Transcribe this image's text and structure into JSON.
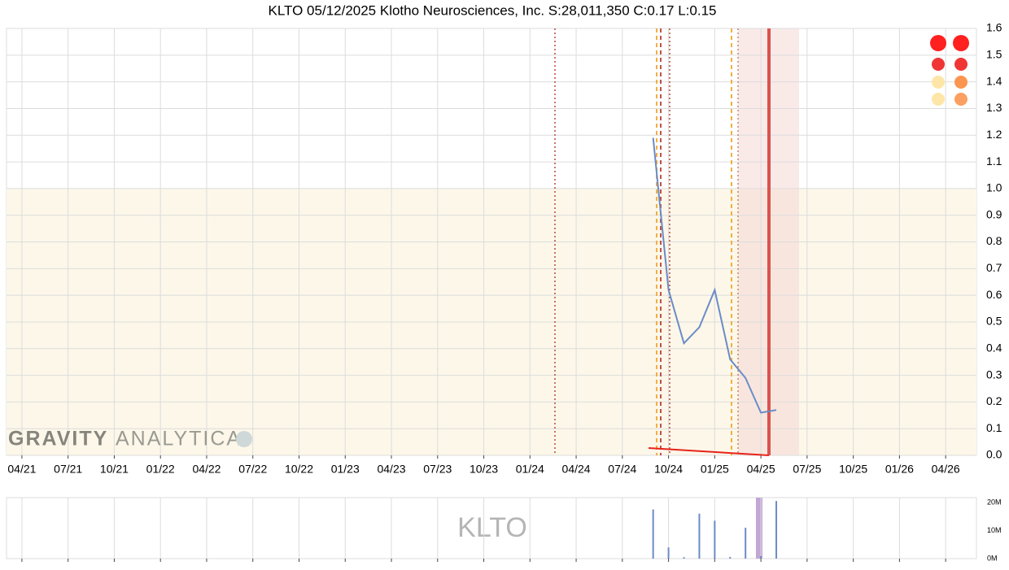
{
  "chart_data": [
    {
      "type": "line",
      "title": "KLTO 05/12/2025 Klotho Neurosciences, Inc. S:28,011,350 C:0.17 L:0.15",
      "brand": [
        "GRAVITY",
        "ANALYTICA"
      ],
      "x": [
        "2024-09",
        "2024-10",
        "2024-11",
        "2024-12",
        "2025-01",
        "2025-02",
        "2025-03",
        "2025-04",
        "2025-05"
      ],
      "values": [
        1.19,
        0.62,
        0.42,
        0.48,
        0.62,
        0.36,
        0.29,
        0.16,
        0.17
      ],
      "color": "#6b8cc7",
      "xlim": [
        "2021-03",
        "2026-06"
      ],
      "xticks": [
        {
          "value": "2021-04",
          "label": "04/21"
        },
        {
          "value": "2021-07",
          "label": "07/21"
        },
        {
          "value": "2021-10",
          "label": "10/21"
        },
        {
          "value": "2022-01",
          "label": "01/22"
        },
        {
          "value": "2022-04",
          "label": "04/22"
        },
        {
          "value": "2022-07",
          "label": "07/22"
        },
        {
          "value": "2022-10",
          "label": "10/22"
        },
        {
          "value": "2023-01",
          "label": "01/23"
        },
        {
          "value": "2023-04",
          "label": "04/23"
        },
        {
          "value": "2023-07",
          "label": "07/23"
        },
        {
          "value": "2023-10",
          "label": "10/23"
        },
        {
          "value": "2024-01",
          "label": "01/24"
        },
        {
          "value": "2024-04",
          "label": "04/24"
        },
        {
          "value": "2024-07",
          "label": "07/24"
        },
        {
          "value": "2024-10",
          "label": "10/24"
        },
        {
          "value": "2025-01",
          "label": "01/25"
        },
        {
          "value": "2025-04",
          "label": "04/25"
        },
        {
          "value": "2025-07",
          "label": "07/25"
        },
        {
          "value": "2025-10",
          "label": "10/25"
        },
        {
          "value": "2026-01",
          "label": "01/26"
        },
        {
          "value": "2026-04",
          "label": "04/26"
        }
      ],
      "ylim": [
        0,
        1.6
      ],
      "yticks": [
        {
          "value": 0,
          "label": "0.0"
        },
        0.1,
        0.2,
        0.3,
        0.4,
        0.5,
        0.6,
        0.7,
        0.8,
        0.9,
        {
          "value": 1,
          "label": "1.0"
        },
        1.1,
        1.2,
        1.3,
        1.4,
        1.5,
        1.6
      ],
      "grid": true
    },
    {
      "type": "bar",
      "watermark": "KLTO",
      "x": [
        "2024-09",
        "2024-10",
        "2024-11",
        "2024-12",
        "2025-01",
        "2025-02",
        "2025-03",
        "2025-04",
        "2025-05"
      ],
      "values": [
        17500000,
        4000000,
        500000,
        16000000,
        13500000,
        600000,
        11000000,
        900000,
        20500000
      ],
      "color": "#6b8cc7",
      "xlim": [
        "2021-03",
        "2026-06"
      ],
      "ylim": [
        0,
        21700000
      ],
      "yticks": [
        {
          "value": 0,
          "label": "0M"
        },
        {
          "value": 10000000,
          "label": "10M"
        },
        {
          "value": 20000000,
          "label": "20M"
        }
      ],
      "grid": true
    }
  ]
}
